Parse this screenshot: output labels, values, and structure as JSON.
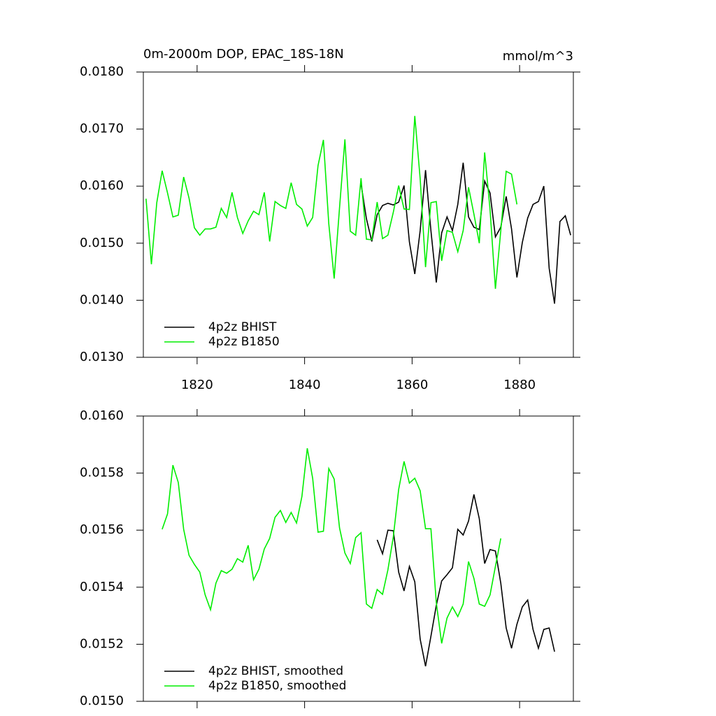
{
  "chart_data": [
    {
      "type": "line",
      "title": "0m-2000m DOP, EPAC_18S-18N",
      "units": "mmol/m^3",
      "xlim": [
        1810,
        1890
      ],
      "xticks": [
        1820,
        1840,
        1860,
        1880
      ],
      "xtick_labels": true,
      "ylim": [
        0.013,
        0.018
      ],
      "yticks": [
        {
          "value": 0.013,
          "label": "0.0130"
        },
        {
          "value": 0.014,
          "label": "0.0140"
        },
        {
          "value": 0.015,
          "label": "0.0150"
        },
        {
          "value": 0.016,
          "label": "0.0160"
        },
        {
          "value": 0.017,
          "label": "0.0170"
        },
        {
          "value": 0.018,
          "label": "0.0180"
        }
      ],
      "legend": "lower left",
      "series": [
        {
          "name": "4p2z BHIST",
          "color": "#000000",
          "x": [
            1850.5,
            1851.5,
            1852.5,
            1853.5,
            1854.5,
            1855.5,
            1856.5,
            1857.5,
            1858.5,
            1859.5,
            1860.5,
            1861.5,
            1862.5,
            1863.5,
            1864.5,
            1865.5,
            1866.5,
            1867.5,
            1868.5,
            1869.5,
            1870.5,
            1871.5,
            1872.5,
            1873.5,
            1874.5,
            1875.5,
            1876.5,
            1877.5,
            1878.5,
            1879.5,
            1880.5,
            1881.5,
            1882.5,
            1883.5,
            1884.5,
            1885.5,
            1886.5,
            1887.5,
            1888.5,
            1889.5
          ],
          "values": [
            0.01604,
            0.01543,
            0.01503,
            0.0155,
            0.01566,
            0.0157,
            0.01567,
            0.01572,
            0.01601,
            0.01502,
            0.01446,
            0.01522,
            0.01628,
            0.01522,
            0.01431,
            0.01518,
            0.01546,
            0.01522,
            0.01568,
            0.01641,
            0.01546,
            0.01528,
            0.01524,
            0.01609,
            0.01588,
            0.01511,
            0.01528,
            0.01582,
            0.01525,
            0.0144,
            0.01501,
            0.01544,
            0.01568,
            0.01573,
            0.016,
            0.01456,
            0.01394,
            0.01538,
            0.01548,
            0.01514
          ]
        },
        {
          "name": "4p2z B1850",
          "color": "#00ee00",
          "x": [
            1810.5,
            1811.5,
            1812.5,
            1813.5,
            1814.5,
            1815.5,
            1816.5,
            1817.5,
            1818.5,
            1819.5,
            1820.5,
            1821.5,
            1822.5,
            1823.5,
            1824.5,
            1825.5,
            1826.5,
            1827.5,
            1828.5,
            1829.5,
            1830.5,
            1831.5,
            1832.5,
            1833.5,
            1834.5,
            1835.5,
            1836.5,
            1837.5,
            1838.5,
            1839.5,
            1840.5,
            1841.5,
            1842.5,
            1843.5,
            1844.5,
            1845.5,
            1846.5,
            1847.5,
            1848.5,
            1849.5,
            1850.5,
            1851.5,
            1852.5,
            1853.5,
            1854.5,
            1855.5,
            1856.5,
            1857.5,
            1858.5,
            1859.5,
            1860.5,
            1861.5,
            1862.5,
            1863.5,
            1864.5,
            1865.5,
            1866.5,
            1867.5,
            1868.5,
            1869.5,
            1870.5,
            1871.5,
            1872.5,
            1873.5,
            1874.5,
            1875.5,
            1876.5,
            1877.5,
            1878.5,
            1879.5
          ],
          "values": [
            0.01578,
            0.01463,
            0.01571,
            0.01627,
            0.01588,
            0.01546,
            0.01549,
            0.01616,
            0.01579,
            0.01527,
            0.01514,
            0.01525,
            0.01525,
            0.01528,
            0.01561,
            0.01545,
            0.01589,
            0.01545,
            0.01517,
            0.01539,
            0.01556,
            0.0155,
            0.01589,
            0.01503,
            0.01573,
            0.01566,
            0.01561,
            0.01606,
            0.01568,
            0.0156,
            0.0153,
            0.01545,
            0.01636,
            0.01681,
            0.01534,
            0.01438,
            0.01562,
            0.01682,
            0.01521,
            0.01514,
            0.01614,
            0.01507,
            0.01506,
            0.01572,
            0.01508,
            0.01514,
            0.01554,
            0.01601,
            0.0156,
            0.01559,
            0.01723,
            0.01613,
            0.01458,
            0.01571,
            0.01573,
            0.01469,
            0.01522,
            0.01519,
            0.01485,
            0.01522,
            0.01598,
            0.01551,
            0.015,
            0.01659,
            0.01559,
            0.0142,
            0.01522,
            0.01626,
            0.01621,
            0.01568
          ]
        }
      ]
    },
    {
      "type": "line",
      "xlim": [
        1810,
        1890
      ],
      "xticks": [
        1820,
        1840,
        1860,
        1880
      ],
      "xtick_labels": false,
      "ylim": [
        0.015,
        0.016
      ],
      "yticks": [
        {
          "value": 0.015,
          "label": "0.0150"
        },
        {
          "value": 0.0152,
          "label": "0.0152"
        },
        {
          "value": 0.0154,
          "label": "0.0154"
        },
        {
          "value": 0.0156,
          "label": "0.0156"
        },
        {
          "value": 0.0158,
          "label": "0.0158"
        },
        {
          "value": 0.016,
          "label": "0.0160"
        }
      ],
      "legend": "lower left",
      "series": [
        {
          "name": "4p2z BHIST, smoothed",
          "color": "#000000",
          "x": [
            1853.5,
            1854.5,
            1855.5,
            1856.5,
            1857.5,
            1858.5,
            1859.5,
            1860.5,
            1861.5,
            1862.5,
            1863.5,
            1864.5,
            1865.5,
            1866.5,
            1867.5,
            1868.5,
            1869.5,
            1870.5,
            1871.5,
            1872.5,
            1873.5,
            1874.5,
            1875.5,
            1876.5,
            1877.5,
            1878.5,
            1879.5,
            1880.5,
            1881.5,
            1882.5,
            1883.5,
            1884.5,
            1885.5,
            1886.5
          ],
          "values": [
            0.015566,
            0.015517,
            0.0156,
            0.015598,
            0.015453,
            0.015387,
            0.015473,
            0.015419,
            0.015218,
            0.015123,
            0.015228,
            0.015336,
            0.015422,
            0.015444,
            0.015468,
            0.015603,
            0.015583,
            0.015632,
            0.015725,
            0.01564,
            0.015483,
            0.015532,
            0.015527,
            0.015414,
            0.015257,
            0.015186,
            0.01527,
            0.015331,
            0.015355,
            0.015252,
            0.015186,
            0.015252,
            0.015257,
            0.015174
          ]
        },
        {
          "name": "4p2z B1850, smoothed",
          "color": "#00ee00",
          "x": [
            1813.5,
            1814.5,
            1815.5,
            1816.5,
            1817.5,
            1818.5,
            1819.5,
            1820.5,
            1821.5,
            1822.5,
            1823.5,
            1824.5,
            1825.5,
            1826.5,
            1827.5,
            1828.5,
            1829.5,
            1830.5,
            1831.5,
            1832.5,
            1833.5,
            1834.5,
            1835.5,
            1836.5,
            1837.5,
            1838.5,
            1839.5,
            1840.5,
            1841.5,
            1842.5,
            1843.5,
            1844.5,
            1845.5,
            1846.5,
            1847.5,
            1848.5,
            1849.5,
            1850.5,
            1851.5,
            1852.5,
            1853.5,
            1854.5,
            1855.5,
            1856.5,
            1857.5,
            1858.5,
            1859.5,
            1860.5,
            1861.5,
            1862.5,
            1863.5,
            1864.5,
            1865.5,
            1866.5,
            1867.5,
            1868.5,
            1869.5,
            1870.5,
            1871.5,
            1872.5,
            1873.5,
            1874.5,
            1875.5,
            1876.5
          ],
          "values": [
            0.015603,
            0.015657,
            0.015828,
            0.015767,
            0.015603,
            0.015512,
            0.01548,
            0.015453,
            0.015373,
            0.015321,
            0.015414,
            0.015458,
            0.015449,
            0.015463,
            0.0155,
            0.015488,
            0.015547,
            0.015426,
            0.015463,
            0.015534,
            0.015571,
            0.015645,
            0.015669,
            0.015627,
            0.015662,
            0.015625,
            0.015718,
            0.015887,
            0.015782,
            0.015593,
            0.015596,
            0.015816,
            0.015779,
            0.015608,
            0.01552,
            0.015483,
            0.015574,
            0.015591,
            0.015341,
            0.015326,
            0.015392,
            0.015375,
            0.015461,
            0.015576,
            0.015743,
            0.015841,
            0.015765,
            0.015782,
            0.015738,
            0.015605,
            0.015605,
            0.015346,
            0.015203,
            0.015292,
            0.015331,
            0.015297,
            0.015341,
            0.01549,
            0.015431,
            0.015341,
            0.015333,
            0.015373,
            0.015473,
            0.015571
          ]
        }
      ]
    }
  ]
}
